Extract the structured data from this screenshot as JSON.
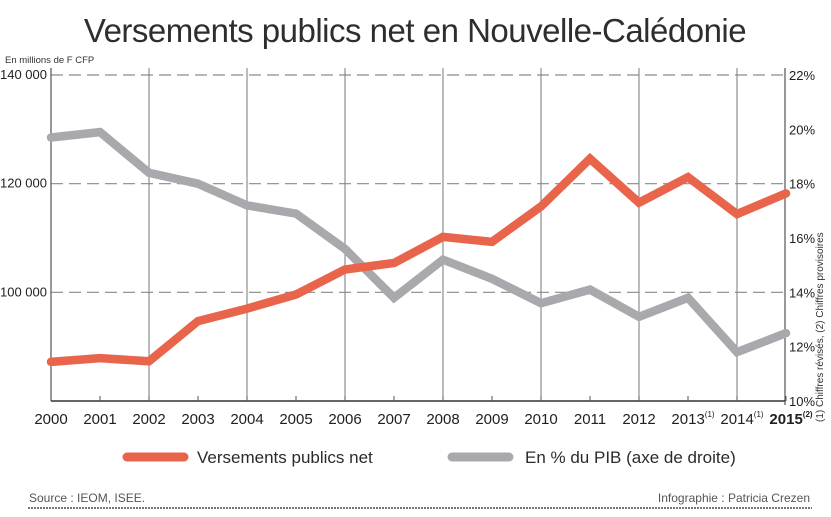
{
  "chart_data": {
    "type": "line",
    "title": "Versements publics net en Nouvelle-Calédonie",
    "ylabel": "En millions de F CFP",
    "ylabel_right": "",
    "xlabel": "",
    "x": [
      "2000",
      "2001",
      "2002",
      "2003",
      "2004",
      "2005",
      "2006",
      "2007",
      "2008",
      "2009",
      "2010",
      "2011",
      "2012",
      "2013",
      "2014",
      "2015"
    ],
    "x_labels": [
      {
        "text": "2000",
        "sup": "",
        "bold": false
      },
      {
        "text": "2001",
        "sup": "",
        "bold": false
      },
      {
        "text": "2002",
        "sup": "",
        "bold": false
      },
      {
        "text": "2003",
        "sup": "",
        "bold": false
      },
      {
        "text": "2004",
        "sup": "",
        "bold": false
      },
      {
        "text": "2005",
        "sup": "",
        "bold": false
      },
      {
        "text": "2006",
        "sup": "",
        "bold": false
      },
      {
        "text": "2007",
        "sup": "",
        "bold": false
      },
      {
        "text": "2008",
        "sup": "",
        "bold": false
      },
      {
        "text": "2009",
        "sup": "",
        "bold": false
      },
      {
        "text": "2010",
        "sup": "",
        "bold": false
      },
      {
        "text": "2011",
        "sup": "",
        "bold": false
      },
      {
        "text": "2012",
        "sup": "",
        "bold": false
      },
      {
        "text": "2013",
        "sup": "(1)",
        "bold": false
      },
      {
        "text": "2014",
        "sup": "(1)",
        "bold": false
      },
      {
        "text": "2015",
        "sup": "(2)",
        "bold": true
      }
    ],
    "ylim": [
      80000,
      140000
    ],
    "yticks": [
      100000,
      120000,
      140000
    ],
    "ytick_labels": [
      "100 000",
      "120 000",
      "140 000"
    ],
    "ylim_right": [
      10,
      22
    ],
    "yticks_right": [
      10,
      12,
      14,
      16,
      18,
      20,
      22
    ],
    "ytick_labels_right": [
      "10%",
      "12%",
      "14%",
      "16%",
      "18%",
      "20%",
      "22%"
    ],
    "grid": "horizontal dashed at left ticks, vertical solid every two years",
    "series": [
      {
        "name": "Versements publics net",
        "axis": "left",
        "color": "#e8644a",
        "values": [
          87200,
          87900,
          87300,
          94700,
          97000,
          99600,
          104200,
          105400,
          110200,
          109300,
          115800,
          124600,
          116500,
          121200,
          114400,
          118200
        ]
      },
      {
        "name": "En % du PIB (axe de droite)",
        "axis": "right",
        "color": "#aaa8ad",
        "values": [
          19.7,
          19.9,
          18.4,
          18.0,
          17.2,
          16.9,
          15.6,
          13.8,
          15.2,
          14.5,
          13.6,
          14.1,
          13.1,
          13.8,
          11.8,
          12.5
        ]
      }
    ],
    "legend": "bottom",
    "annotations": [
      "(1) Chiffres révisés, (2) Chiffres provisoires"
    ]
  },
  "legend": [
    {
      "label": "Versements publics net",
      "color": "#e8644a"
    },
    {
      "label": "En % du PIB (axe de droite)",
      "color": "#aaa8ad"
    }
  ],
  "footer": {
    "source": "Source : IEOM, ISEE.",
    "credit": "Infographie : Patricia Crezen"
  }
}
